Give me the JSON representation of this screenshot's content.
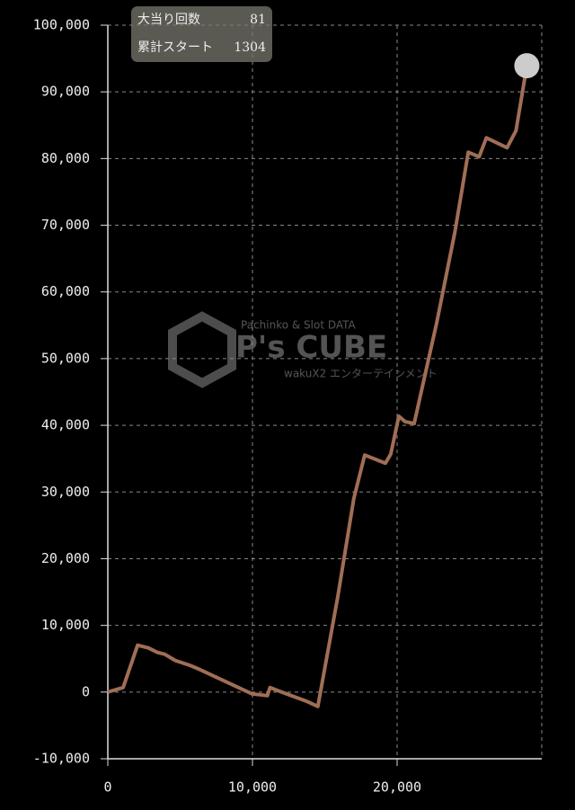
{
  "chart_data": {
    "type": "line",
    "info": {
      "rows": [
        [
          "大当り回数",
          "81"
        ],
        [
          "累計スタート",
          "1304"
        ]
      ]
    },
    "watermark": {
      "brand": "P's CUBE",
      "tagline": "Pachinko & Slot DATA",
      "company": "wakuX2 エンターテインメント"
    },
    "x": [
      0,
      1060,
      2060,
      2800,
      3430,
      3930,
      4670,
      5610,
      6230,
      9970,
      11030,
      11210,
      11840,
      13710,
      14520,
      15890,
      17010,
      17760,
      19190,
      19560,
      20120,
      20560,
      21180,
      22740,
      23990,
      24920,
      25670,
      26170,
      27600,
      28220,
      28970
    ],
    "series": [
      {
        "color": "#a06e56",
        "values": [
          0,
          680,
          7030,
          6620,
          5950,
          5680,
          4730,
          4050,
          3510,
          -270,
          -540,
          680,
          140,
          -1350,
          -2160,
          14190,
          29050,
          35540,
          34320,
          35680,
          41350,
          40540,
          40270,
          55410,
          68920,
          80950,
          80270,
          83110,
          81620,
          84190,
          93920
        ]
      }
    ],
    "xlim": [
      0,
      30000
    ],
    "xticks": [
      {
        "value": 0,
        "label": "0"
      },
      {
        "value": 10000,
        "label": "10,000"
      },
      {
        "value": 20000,
        "label": "20,000"
      }
    ],
    "ylim": [
      -10000,
      100000
    ],
    "yticks": [
      {
        "value": -10000,
        "label": "-10,000"
      },
      {
        "value": 0,
        "label": "0"
      },
      {
        "value": 10000,
        "label": "10,000"
      },
      {
        "value": 20000,
        "label": "20,000"
      },
      {
        "value": 30000,
        "label": "30,000"
      },
      {
        "value": 40000,
        "label": "40,000"
      },
      {
        "value": 50000,
        "label": "50,000"
      },
      {
        "value": 60000,
        "label": "60,000"
      },
      {
        "value": 70000,
        "label": "70,000"
      },
      {
        "value": 80000,
        "label": "80,000"
      },
      {
        "value": 90000,
        "label": "90,000"
      },
      {
        "value": 100000,
        "label": "100,000"
      }
    ],
    "grid": true
  }
}
